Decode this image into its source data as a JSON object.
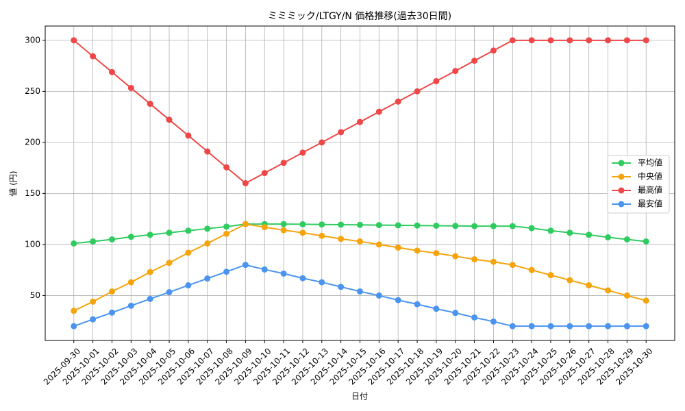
{
  "chart_data": {
    "type": "line",
    "title": "ミミミック/LTGY/N 価格推移(過去30日間)",
    "x_label": "日付",
    "y_label": "値 (円)",
    "categories": [
      "2025-09-30",
      "2025-10-01",
      "2025-10-02",
      "2025-10-03",
      "2025-10-04",
      "2025-10-05",
      "2025-10-06",
      "2025-10-07",
      "2025-10-08",
      "2025-10-09",
      "2025-10-10",
      "2025-10-11",
      "2025-10-12",
      "2025-10-13",
      "2025-10-14",
      "2025-10-15",
      "2025-10-16",
      "2025-10-17",
      "2025-10-18",
      "2025-10-19",
      "2025-10-20",
      "2025-10-21",
      "2025-10-22",
      "2025-10-23",
      "2025-10-24",
      "2025-10-25",
      "2025-10-26",
      "2025-10-27",
      "2025-10-28",
      "2025-10-29",
      "2025-10-30"
    ],
    "series": [
      {
        "name": "平均値",
        "color": "#2ecc5f",
        "values": [
          101,
          103,
          105,
          107.5,
          109.5,
          111.5,
          113.5,
          115.5,
          117.5,
          120,
          120,
          120,
          119.8,
          119.6,
          119.4,
          119.2,
          119,
          118.8,
          118.6,
          118.4,
          118.2,
          118,
          118,
          118,
          116,
          113.5,
          111.5,
          109.5,
          107,
          105,
          103
        ]
      },
      {
        "name": "中央値",
        "color": "#f5a40c",
        "values": [
          35,
          44,
          54,
          63,
          73,
          82,
          92,
          101,
          110.5,
          120,
          117,
          114,
          111.5,
          108.5,
          105.5,
          103,
          100,
          97,
          94,
          91.5,
          88.5,
          85.5,
          83,
          80,
          75,
          70,
          65,
          60,
          55,
          50,
          45
        ]
      },
      {
        "name": "最高値",
        "color": "#ef4747",
        "values": [
          300,
          284.4,
          268.9,
          253.3,
          237.8,
          222.2,
          206.7,
          191.1,
          175.6,
          160,
          170,
          180,
          190,
          200,
          210,
          220,
          230,
          240,
          250,
          260,
          270,
          280,
          290,
          300,
          300,
          300,
          300,
          300,
          300,
          300,
          300
        ]
      },
      {
        "name": "最安値",
        "color": "#4a94f0",
        "values": [
          20,
          26.7,
          33.3,
          40,
          46.7,
          53.3,
          60,
          66.7,
          73.3,
          80,
          75.5,
          71.5,
          67,
          63,
          58.5,
          54,
          50,
          45.5,
          41.5,
          37,
          33,
          28.5,
          24.5,
          20,
          20,
          20,
          20,
          20,
          20,
          20,
          20
        ]
      }
    ],
    "ylim": [
      6,
      314
    ],
    "yticks": [
      50,
      100,
      150,
      200,
      250,
      300
    ],
    "grid": true,
    "legend": "right"
  }
}
